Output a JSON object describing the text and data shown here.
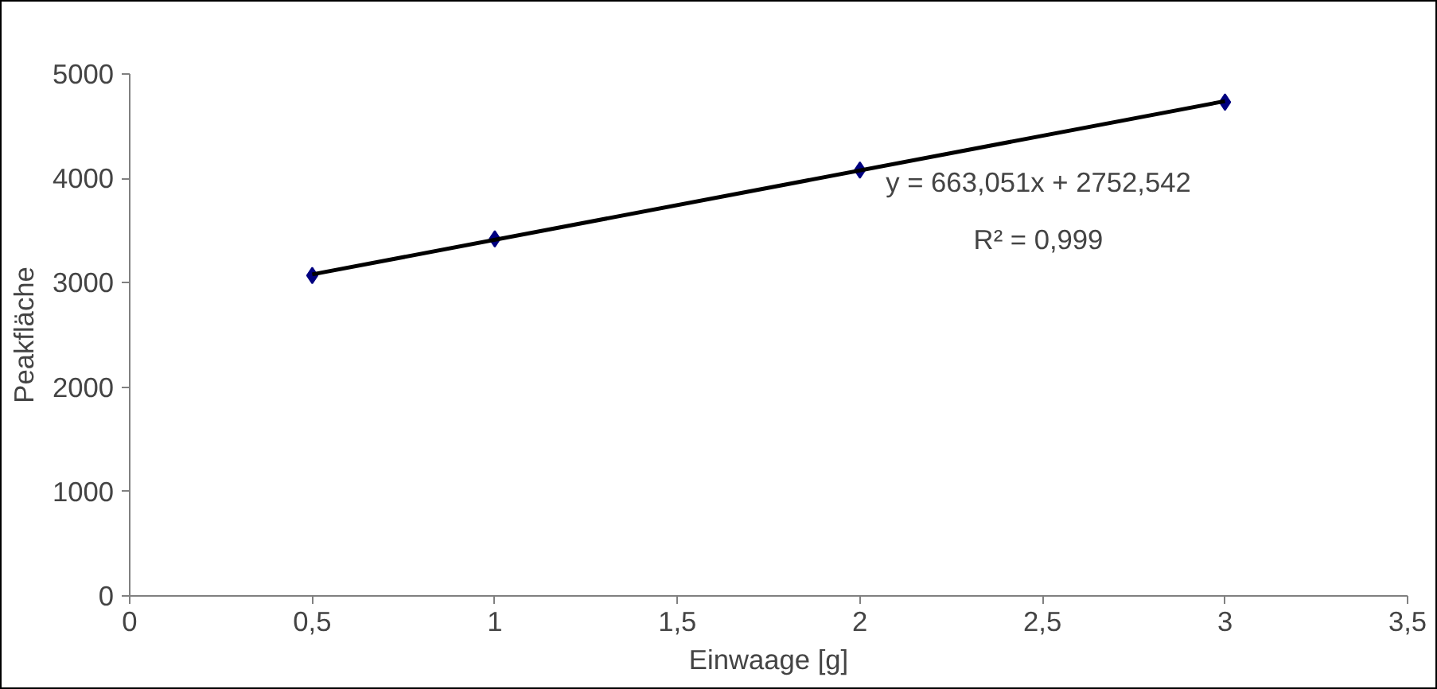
{
  "chart_data": {
    "type": "scatter",
    "xlabel": "Einwaage [g]",
    "ylabel": "Peakfläche",
    "x": [
      0.5,
      1,
      2,
      3
    ],
    "series": [
      {
        "color": "#000080",
        "values": [
          3070,
          3420,
          4080,
          4730
        ],
        "marker": "diamond"
      },
      {
        "type": "line",
        "color": "#000000",
        "x": [
          0.5,
          3
        ],
        "values": [
          3080,
          4740
        ],
        "line_style": "solid"
      }
    ],
    "xlim": [
      0,
      3.5
    ],
    "xticks": [
      0,
      {
        "value": 0.5,
        "label": "0,5"
      },
      1,
      {
        "value": 1.5,
        "label": "1,5"
      },
      2,
      {
        "value": 2.5,
        "label": "2,5"
      },
      3,
      {
        "value": 3.5,
        "label": "3,5"
      }
    ],
    "ylim": [
      0,
      5000
    ],
    "yticks": [
      0,
      1000,
      2000,
      3000,
      4000,
      5000
    ],
    "grid": false,
    "annotations": [
      "y = 663,051x + 2752,542",
      "R² = 0,999"
    ]
  }
}
